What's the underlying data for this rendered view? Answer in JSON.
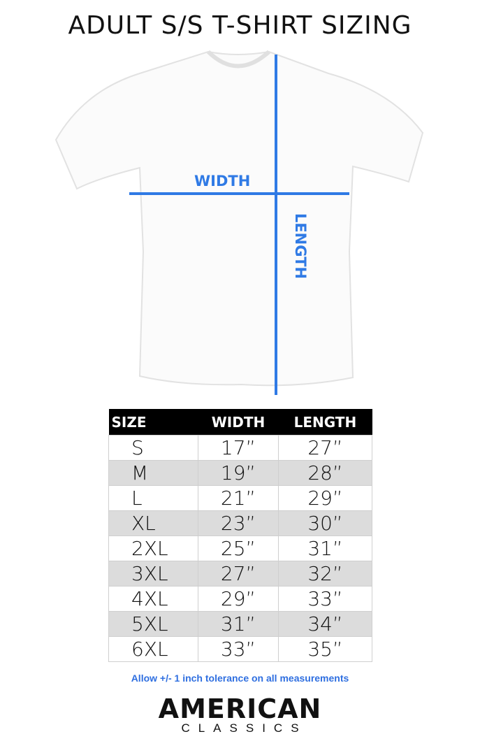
{
  "title": "ADULT S/S T-SHIRT SIZING",
  "diagram": {
    "width_label": "WIDTH",
    "length_label": "LENGTH",
    "line_color": "#2f7ae5"
  },
  "table": {
    "headers": [
      "SIZE",
      "WIDTH",
      "LENGTH"
    ],
    "rows": [
      [
        "S",
        "17”",
        "27”"
      ],
      [
        "M",
        "19”",
        "28”"
      ],
      [
        "L",
        "21”",
        "29”"
      ],
      [
        "XL",
        "23”",
        "30”"
      ],
      [
        "2XL",
        "25”",
        "31”"
      ],
      [
        "3XL",
        "27”",
        "32”"
      ],
      [
        "4XL",
        "29”",
        "33”"
      ],
      [
        "5XL",
        "31”",
        "34”"
      ],
      [
        "6XL",
        "33”",
        "35”"
      ]
    ]
  },
  "note": "Allow +/- 1 inch tolerance on all measurements",
  "logo": {
    "line1": "AMERICAN",
    "line2": "CLASSICS"
  }
}
